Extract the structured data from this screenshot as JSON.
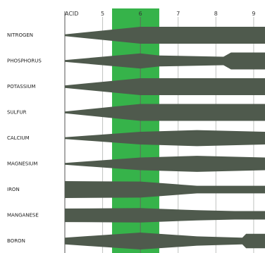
{
  "chart_data": {
    "type": "area",
    "x_axis": {
      "label": "",
      "ticks": [
        "ACID",
        "5",
        "6",
        "7",
        "8",
        "9"
      ],
      "tick_values": [
        4,
        5,
        6,
        7,
        8,
        9
      ],
      "range": [
        4,
        9.3
      ]
    },
    "highlight_range": [
      5.25,
      6.5
    ],
    "colors": {
      "band": "#4f5a4d",
      "highlight": "#36b34a",
      "grid": "#bfc2bf",
      "tick_mark": "#5f6b5c"
    },
    "nutrients": [
      {
        "name": "NITROGEN",
        "profile": [
          [
            4,
            0.1
          ],
          [
            6,
            1.0
          ],
          [
            9.3,
            1.0
          ]
        ]
      },
      {
        "name": "PHOSPHORUS",
        "profile": [
          [
            4,
            0.1
          ],
          [
            6,
            0.9
          ],
          [
            6.5,
            0.65
          ],
          [
            8.2,
            0.5
          ],
          [
            8.4,
            1.0
          ],
          [
            9.3,
            1.0
          ]
        ]
      },
      {
        "name": "POTASSIUM",
        "profile": [
          [
            4,
            0.15
          ],
          [
            6,
            1.0
          ],
          [
            9.3,
            1.0
          ]
        ]
      },
      {
        "name": "SULFUR",
        "profile": [
          [
            4,
            0.1
          ],
          [
            6,
            1.0
          ],
          [
            9.3,
            1.0
          ]
        ]
      },
      {
        "name": "CALCIUM",
        "profile": [
          [
            4,
            0.1
          ],
          [
            6,
            0.75
          ],
          [
            7.5,
            0.95
          ],
          [
            9.3,
            0.75
          ]
        ]
      },
      {
        "name": "MAGNESIUM",
        "profile": [
          [
            4,
            0.1
          ],
          [
            6,
            0.75
          ],
          [
            7.5,
            0.95
          ],
          [
            9.3,
            0.75
          ]
        ]
      },
      {
        "name": "IRON",
        "profile": [
          [
            4,
            1.0
          ],
          [
            6,
            0.95
          ],
          [
            7.5,
            0.45
          ],
          [
            9.3,
            0.45
          ]
        ]
      },
      {
        "name": "MANGANESE",
        "profile": [
          [
            4,
            0.8
          ],
          [
            6,
            0.85
          ],
          [
            7.5,
            0.6
          ],
          [
            8.5,
            0.5
          ],
          [
            9.3,
            0.5
          ]
        ]
      },
      {
        "name": "BORON",
        "profile": [
          [
            4,
            0.4
          ],
          [
            6,
            1.0
          ],
          [
            7.5,
            0.55
          ],
          [
            8.7,
            0.4
          ],
          [
            8.8,
            0.85
          ],
          [
            9.3,
            0.85
          ]
        ]
      }
    ]
  }
}
